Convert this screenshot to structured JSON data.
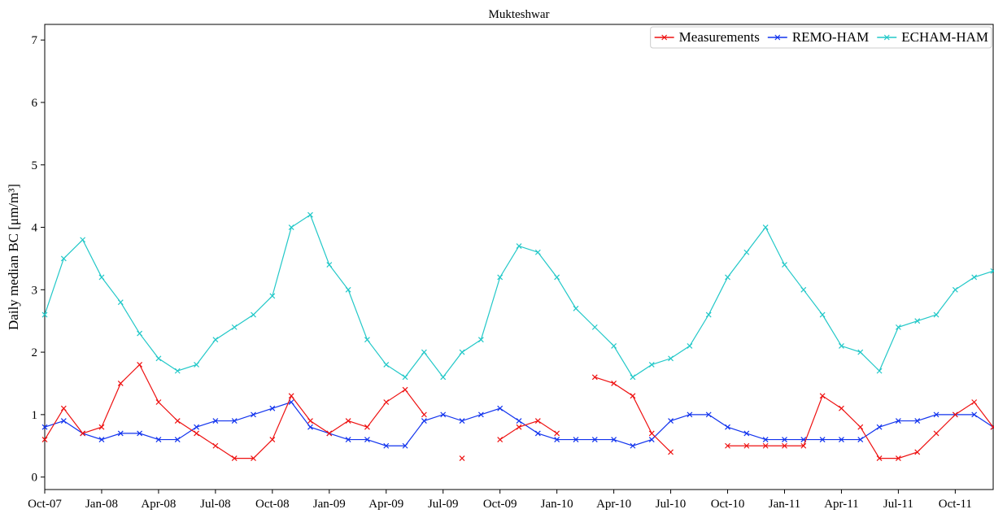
{
  "chart_data": {
    "type": "line",
    "title": "Mukteshwar",
    "ylabel": "Daily median BC [μm/m³]",
    "x": [
      "2007-10",
      "2007-11",
      "2007-12",
      "2008-01",
      "2008-02",
      "2008-03",
      "2008-04",
      "2008-05",
      "2008-06",
      "2008-07",
      "2008-08",
      "2008-09",
      "2008-10",
      "2008-11",
      "2008-12",
      "2009-01",
      "2009-02",
      "2009-03",
      "2009-04",
      "2009-05",
      "2009-06",
      "2009-07",
      "2009-08",
      "2009-09",
      "2009-10",
      "2009-11",
      "2009-12",
      "2010-01",
      "2010-02",
      "2010-03",
      "2010-04",
      "2010-05",
      "2010-06",
      "2010-07",
      "2010-08",
      "2010-09",
      "2010-10",
      "2010-11",
      "2010-12",
      "2011-01",
      "2011-02",
      "2011-03",
      "2011-04",
      "2011-05",
      "2011-06",
      "2011-07",
      "2011-08",
      "2011-09",
      "2011-10",
      "2011-11",
      "2011-12"
    ],
    "series": [
      {
        "name": "Measurements",
        "color": "#ee1111",
        "values": [
          0.6,
          1.1,
          0.7,
          0.8,
          1.5,
          1.8,
          1.2,
          0.9,
          0.7,
          0.5,
          0.3,
          0.3,
          0.6,
          1.3,
          0.9,
          0.7,
          0.9,
          0.8,
          1.2,
          1.4,
          1.0,
          null,
          0.3,
          null,
          0.6,
          0.8,
          0.9,
          0.7,
          null,
          1.6,
          1.5,
          1.3,
          0.7,
          0.4,
          null,
          null,
          0.5,
          0.5,
          0.5,
          0.5,
          0.5,
          1.3,
          1.1,
          0.8,
          0.3,
          0.3,
          0.4,
          0.7,
          1.0,
          1.2,
          0.8
        ]
      },
      {
        "name": "REMO-HAM",
        "color": "#1133ee",
        "values": [
          0.8,
          0.9,
          0.7,
          0.6,
          0.7,
          0.7,
          0.6,
          0.6,
          0.8,
          0.9,
          0.9,
          1.0,
          1.1,
          1.2,
          0.8,
          0.7,
          0.6,
          0.6,
          0.5,
          0.5,
          0.9,
          1.0,
          0.9,
          1.0,
          1.1,
          0.9,
          0.7,
          0.6,
          0.6,
          0.6,
          0.6,
          0.5,
          0.6,
          0.9,
          1.0,
          1.0,
          0.8,
          0.7,
          0.6,
          0.6,
          0.6,
          0.6,
          0.6,
          0.6,
          0.8,
          0.9,
          0.9,
          1.0,
          1.0,
          1.0,
          0.8
        ]
      },
      {
        "name": "ECHAM-HAM",
        "color": "#22c8c8",
        "values": [
          2.6,
          3.5,
          3.8,
          3.2,
          2.8,
          2.3,
          1.9,
          1.7,
          1.8,
          2.2,
          2.4,
          2.6,
          2.9,
          4.0,
          4.2,
          3.4,
          3.0,
          2.2,
          1.8,
          1.6,
          2.0,
          1.6,
          2.0,
          2.2,
          3.2,
          3.7,
          3.6,
          3.2,
          2.7,
          2.4,
          2.1,
          1.6,
          1.8,
          1.9,
          2.1,
          2.6,
          3.2,
          3.6,
          4.0,
          3.4,
          3.0,
          2.6,
          2.1,
          2.0,
          1.7,
          2.4,
          2.5,
          2.6,
          3.0,
          3.2,
          3.3
        ]
      }
    ],
    "xlim": [
      "2007-10",
      "2011-12"
    ],
    "xticks": [
      {
        "value": "2007-10",
        "label": "Oct-07"
      },
      {
        "value": "2008-01",
        "label": "Jan-08"
      },
      {
        "value": "2008-04",
        "label": "Apr-08"
      },
      {
        "value": "2008-07",
        "label": "Jul-08"
      },
      {
        "value": "2008-10",
        "label": "Oct-08"
      },
      {
        "value": "2009-01",
        "label": "Jan-09"
      },
      {
        "value": "2009-04",
        "label": "Apr-09"
      },
      {
        "value": "2009-07",
        "label": "Jul-09"
      },
      {
        "value": "2009-10",
        "label": "Oct-09"
      },
      {
        "value": "2010-01",
        "label": "Jan-10"
      },
      {
        "value": "2010-04",
        "label": "Apr-10"
      },
      {
        "value": "2010-07",
        "label": "Jul-10"
      },
      {
        "value": "2010-10",
        "label": "Oct-10"
      },
      {
        "value": "2011-01",
        "label": "Jan-11"
      },
      {
        "value": "2011-04",
        "label": "Apr-11"
      },
      {
        "value": "2011-07",
        "label": "Jul-11"
      },
      {
        "value": "2011-10",
        "label": "Oct-11"
      }
    ],
    "ylim": [
      -0.2,
      7.25
    ],
    "yticks": [
      0,
      1,
      2,
      3,
      4,
      5,
      6,
      7
    ],
    "legend": "upper right"
  }
}
